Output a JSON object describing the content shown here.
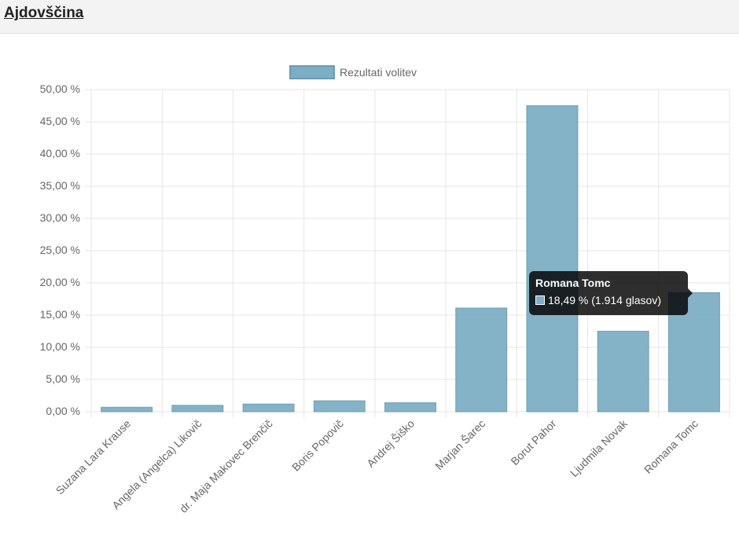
{
  "page": {
    "title": "Ajdovščina"
  },
  "colors": {
    "bar_fill": "#7eaec4",
    "bar_border": "#6a9cb3",
    "grid": "#e5e5e5",
    "axis_text": "#666666"
  },
  "chart_data": {
    "type": "bar",
    "legend": {
      "label": "Rezultati volitev",
      "position": "top"
    },
    "categories": [
      "Suzana Lara Krause",
      "Angela (Angelca) Likovič",
      "dr. Maja Makovec Brenčič",
      "Boris Popovič",
      "Andrej Šiško",
      "Marjan Šarec",
      "Borut Pahor",
      "Ljudmila Novak",
      "Romana Tomc"
    ],
    "series": [
      {
        "name": "Rezultati volitev",
        "values": [
          0.7,
          1.0,
          1.2,
          1.7,
          1.4,
          16.1,
          47.5,
          12.5,
          18.49
        ]
      }
    ],
    "ylim": [
      0,
      50
    ],
    "yticks": [
      "0,00 %",
      "5,00 %",
      "10,00 %",
      "15,00 %",
      "20,00 %",
      "25,00 %",
      "30,00 %",
      "35,00 %",
      "40,00 %",
      "45,00 %",
      "50,00 %"
    ],
    "grid": true
  },
  "tooltip": {
    "title": "Romana Tomc",
    "text": "18,49 % (1.914 glasov)"
  }
}
